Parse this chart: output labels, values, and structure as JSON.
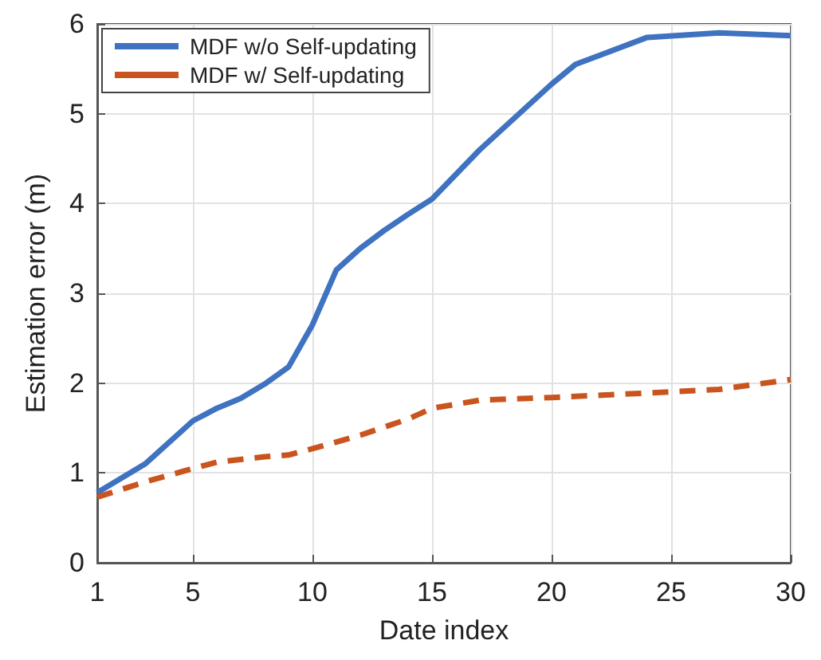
{
  "chart_data": {
    "type": "line",
    "xlabel": "Date index",
    "ylabel": "Estimation error (m)",
    "xlim": [
      1,
      30
    ],
    "xticks": [
      1,
      5,
      10,
      15,
      20,
      25,
      30
    ],
    "ylim": [
      0,
      6
    ],
    "yticks": [
      0,
      1,
      2,
      3,
      4,
      5,
      6
    ],
    "grid": true,
    "legend": "top left",
    "marker": "none",
    "series": [
      {
        "name": "MDF w/o Self-updating",
        "color": "#3f72c0",
        "line_style": "solid",
        "x": [
          1,
          3,
          5,
          6,
          7,
          8,
          9,
          10,
          11,
          12,
          13,
          14,
          15,
          17,
          20,
          21,
          24,
          27,
          30
        ],
        "values": [
          0.78,
          1.1,
          1.58,
          1.72,
          1.83,
          1.99,
          2.18,
          2.65,
          3.26,
          3.5,
          3.7,
          3.88,
          4.05,
          4.6,
          5.33,
          5.55,
          5.85,
          5.9,
          5.87
        ]
      },
      {
        "name": "MDF w/ Self-updating",
        "color": "#c9541e",
        "line_style": "dashed",
        "x": [
          1,
          3,
          5,
          6,
          8,
          9,
          10,
          12,
          14,
          15,
          17,
          20,
          24,
          27,
          30
        ],
        "values": [
          0.73,
          0.9,
          1.05,
          1.12,
          1.18,
          1.2,
          1.27,
          1.42,
          1.6,
          1.72,
          1.81,
          1.84,
          1.89,
          1.93,
          2.04
        ]
      }
    ]
  }
}
